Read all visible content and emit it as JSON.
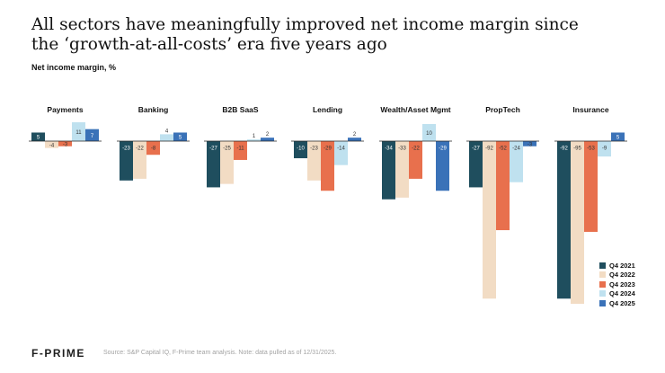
{
  "title": "All sectors have meaningfully improved net income margin since the ‘growth-at-all-costs’ era five years ago",
  "title_lines": [
    "All sectors have meaningfully improved net income margin since",
    "the ‘growth-at-all-costs’ era five years ago"
  ],
  "subtitle": "Net income margin, %",
  "logo": "F-PRIME",
  "source": "Source: S&P Capital IQ, F-Prime team analysis. Note: data pulled as of 12/31/2025.",
  "colors": {
    "Q4 2021": "#1f4e5e",
    "Q4 2022": "#f2dcc4",
    "Q4 2023": "#e8704d",
    "Q4 2024": "#bfe1ef",
    "Q4 2025": "#3a72b8"
  },
  "chart_data": {
    "type": "bar",
    "layout": "small-multiples",
    "ylabel": "Net income margin, %",
    "legend_position": "right",
    "grid": false,
    "series_names": [
      "Q4 2021",
      "Q4 2022",
      "Q4 2023",
      "Q4 2024",
      "Q4 2025"
    ],
    "panels": [
      {
        "category": "Payments",
        "values": [
          5,
          -4,
          -3,
          11,
          7
        ]
      },
      {
        "category": "Banking",
        "values": [
          -23,
          -22,
          -8,
          4,
          5
        ]
      },
      {
        "category": "B2B SaaS",
        "values": [
          -27,
          -25,
          -11,
          1,
          2
        ]
      },
      {
        "category": "Lending",
        "values": [
          -10,
          -23,
          -29,
          -14,
          2
        ]
      },
      {
        "category": "Wealth/Asset Mgmt",
        "values": [
          -34,
          -33,
          -22,
          10,
          -29
        ]
      },
      {
        "category": "PropTech",
        "values": [
          -27,
          -92,
          -52,
          -24,
          -3
        ]
      },
      {
        "category": "Insurance",
        "values": [
          -92,
          -95,
          -53,
          -9,
          5
        ]
      }
    ]
  }
}
